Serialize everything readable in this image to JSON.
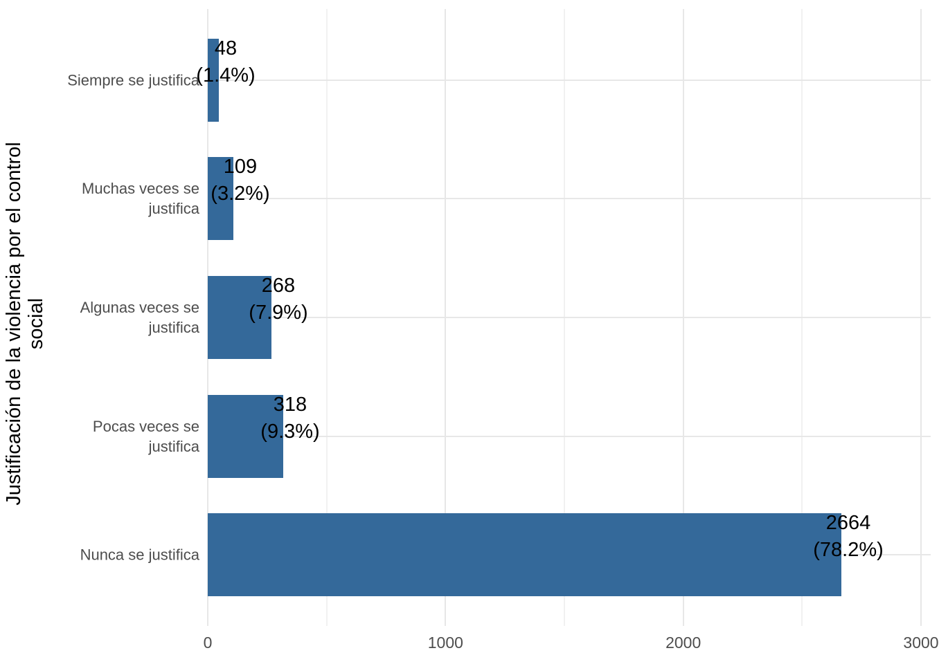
{
  "chart_data": {
    "type": "bar",
    "orientation": "horizontal",
    "title": "",
    "xlabel": "",
    "ylabel": "Justificación de la violencia por el control\nsocial",
    "categories": [
      "Siempre se justifica",
      "Muchas veces se\njustifica",
      "Algunas veces se\njustifica",
      "Pocas veces se\njustifica",
      "Nunca se justifica"
    ],
    "values": [
      48,
      109,
      268,
      318,
      2664
    ],
    "value_labels": [
      "48",
      "109",
      "268",
      "318",
      "2664"
    ],
    "percent_labels": [
      "(1.4%)",
      "(3.2%)",
      "(7.9%)",
      "(9.3%)",
      "(78.2%)"
    ],
    "xlim": [
      0,
      3000
    ],
    "x_ticks": [
      0,
      1000,
      2000,
      3000
    ],
    "x_tick_labels": [
      "0",
      "1000",
      "2000",
      "3000"
    ],
    "x_minor_ticks": [
      500,
      1500,
      2500
    ],
    "bar_width_fraction": 0.7,
    "grid": "x major+minor, y major only, no axis lines, white background",
    "legend": "none",
    "colors": {
      "bar": "#34699A",
      "grid_major": "#E7E7E7",
      "grid_minor": "#F1F1F1",
      "axis_text": "#4D4D4D",
      "value_label": "#000000",
      "axis_title": "#000000",
      "background": "#FFFFFF"
    }
  }
}
